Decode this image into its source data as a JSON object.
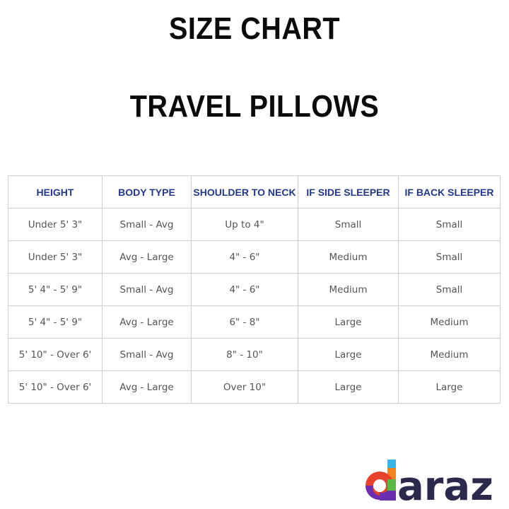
{
  "title": "SIZE CHART",
  "subtitle": "TRAVEL PILLOWS",
  "table": {
    "headers": [
      "HEIGHT",
      "BODY TYPE",
      "SHOULDER TO NECK",
      "IF SIDE SLEEPER",
      "IF BACK SLEEPER"
    ],
    "rows": [
      [
        "Under 5' 3\"",
        "Small - Avg",
        "Up to 4\"",
        "Small",
        "Small"
      ],
      [
        "Under 5' 3\"",
        "Avg - Large",
        "4\" - 6\"",
        "Medium",
        "Small"
      ],
      [
        "5' 4\" - 5' 9\"",
        "Small - Avg",
        "4\" - 6\"",
        "Medium",
        "Small"
      ],
      [
        "5' 4\" - 5' 9\"",
        "Avg - Large",
        "6\" - 8\"",
        "Large",
        "Medium"
      ],
      [
        "5' 10\" - Over 6'",
        "Small - Avg",
        "8\" - 10\"",
        "Large",
        "Medium"
      ],
      [
        "5' 10\" - Over 6'",
        "Avg - Large",
        "Over 10\"",
        "Large",
        "Large"
      ]
    ]
  },
  "logo": {
    "text": "daraz",
    "color": "#2b2a4c"
  },
  "colors": {
    "header_text": "#24388a",
    "cell_text": "#555555",
    "border": "#cfcfcf"
  }
}
